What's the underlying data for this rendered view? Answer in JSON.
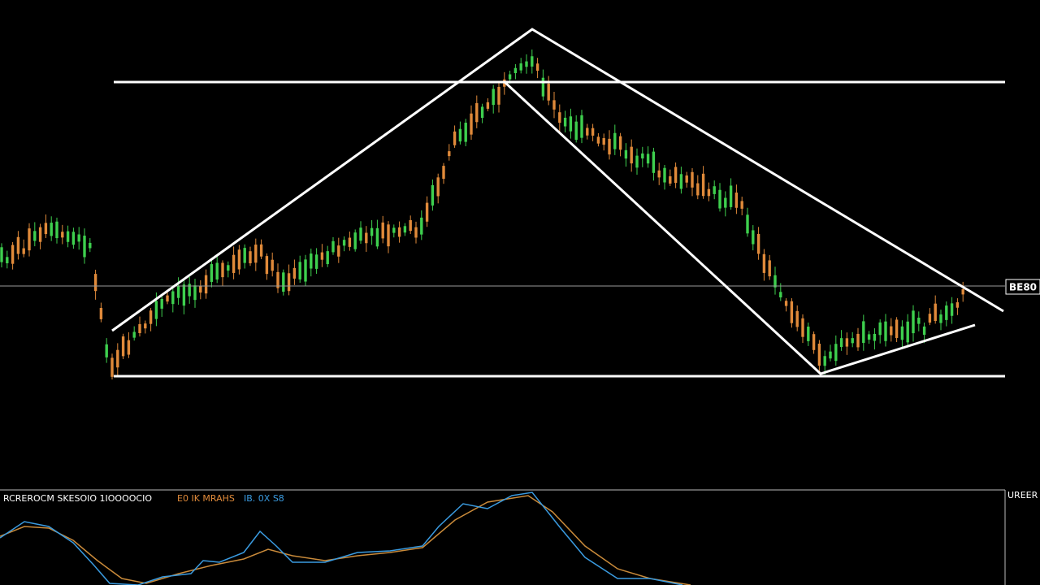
{
  "price_label": "BE80",
  "indicator": {
    "name": "RCREROCM SKESOIO 1IOOOOCIO",
    "line1": "E0 IK MRAHS",
    "line2": "IB. 0X S8",
    "axis_label": "UREER"
  }
}
